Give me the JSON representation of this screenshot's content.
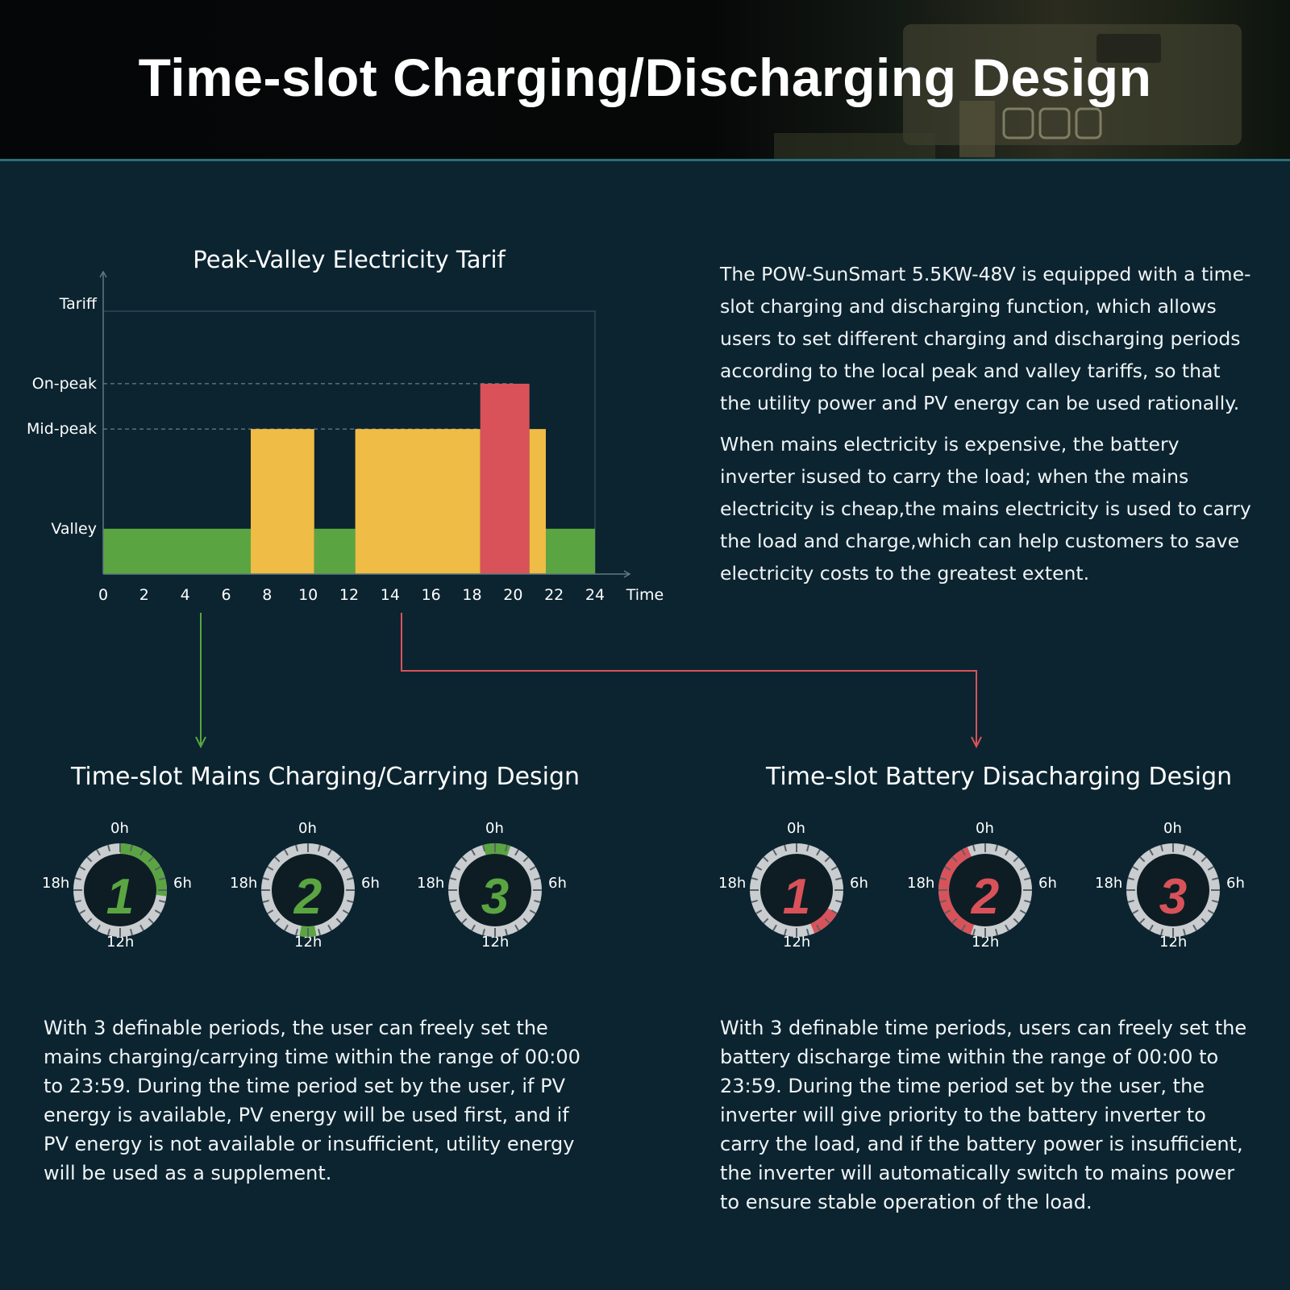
{
  "header": {
    "title": "Time-slot Charging/Discharging Design"
  },
  "chart_data": {
    "type": "bar",
    "title": "Peak-Valley Electricity Tarif",
    "xlabel": "Time",
    "ylabel": "Tariff",
    "xlim": [
      0,
      24
    ],
    "x_ticks": [
      "0",
      "2",
      "4",
      "6",
      "8",
      "10",
      "12",
      "14",
      "16",
      "18",
      "20",
      "22",
      "24"
    ],
    "y_levels": [
      {
        "name": "Valley",
        "value": 1
      },
      {
        "name": "Mid-peak",
        "value": 3.2
      },
      {
        "name": "On-peak",
        "value": 4.2
      }
    ],
    "ylim": [
      0,
      5.8
    ],
    "segments": [
      {
        "start": 0,
        "end": 7.2,
        "level": "Valley",
        "color": "#5aa541"
      },
      {
        "start": 7.2,
        "end": 10.3,
        "level": "Mid-peak",
        "color": "#efbc45"
      },
      {
        "start": 10.3,
        "end": 12.3,
        "level": "Valley",
        "color": "#5aa541"
      },
      {
        "start": 12.3,
        "end": 18.4,
        "level": "Mid-peak",
        "color": "#efbc45"
      },
      {
        "start": 18.4,
        "end": 20.8,
        "level": "On-peak",
        "color": "#d9525a"
      },
      {
        "start": 20.8,
        "end": 21.6,
        "level": "Mid-peak",
        "color": "#efbc45"
      },
      {
        "start": 21.6,
        "end": 24,
        "level": "Valley",
        "color": "#5aa541"
      }
    ]
  },
  "intro": {
    "p1": "The POW-SunSmart 5.5KW-48V is equipped with a time-slot charging and discharging function, which allows users to set different charging and discharging periods according to the local peak and valley tariffs, so that the utility power and PV energy can be used rationally.",
    "p2": "When mains electricity is expensive, the battery inverter isused to carry the load; when the mains electricity is cheap,the mains electricity is used to carry the load and charge,which can help customers to save electricity costs to the greatest extent."
  },
  "dial_labels": {
    "top": "0h",
    "right": "6h",
    "bottom": "12h",
    "left": "18h"
  },
  "mains": {
    "title": "Time-slot Mains Charging/Carrying Design",
    "color": "#5aa541",
    "dials": [
      {
        "num": "1",
        "from_h": 0,
        "to_h": 6.5
      },
      {
        "num": "2",
        "from_h": 11.3,
        "to_h": 12.7
      },
      {
        "num": "3",
        "from_h": 23,
        "to_h": 1.3
      }
    ],
    "description": "With 3 definable periods, the user can freely set the mains charging/carrying time within the range of 00:00 to 23:59. During the time period set by the user, if PV energy is available, PV energy will be used first, and if PV energy is not available or insufficient, utility energy will be used as a supplement."
  },
  "battery": {
    "title": "Time-slot Battery Disacharging Design",
    "color": "#d9525a",
    "dials": [
      {
        "num": "1",
        "from_h": 8,
        "to_h": 10.5
      },
      {
        "num": "2",
        "from_h": 13.2,
        "to_h": 22.5
      },
      {
        "num": "3",
        "from_h": 0,
        "to_h": 0
      }
    ],
    "description": "With 3 definable time periods, users can freely set the battery discharge time within the range of 00:00 to 23:59. During the time period set by the user, the inverter will give priority to the battery inverter to carry the load, and if the battery power is insufficient, the inverter will automatically switch to mains power to ensure stable operation of the load."
  }
}
